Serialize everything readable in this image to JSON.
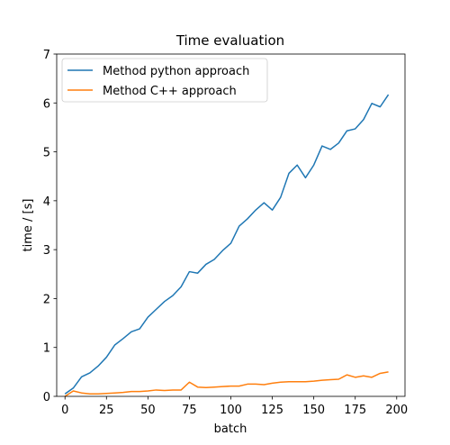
{
  "chart_data": {
    "type": "line",
    "title": "Time evaluation",
    "xlabel": "batch",
    "ylabel": "time / [s]",
    "xlim": [
      -5,
      205
    ],
    "ylim": [
      0,
      7
    ],
    "xticks": [
      0,
      25,
      50,
      75,
      100,
      125,
      150,
      175,
      200
    ],
    "yticks": [
      0,
      1,
      2,
      3,
      4,
      5,
      6,
      7
    ],
    "grid": false,
    "legend_position": "top-left",
    "x": [
      0,
      5,
      10,
      15,
      20,
      25,
      30,
      35,
      40,
      45,
      50,
      55,
      60,
      65,
      70,
      75,
      80,
      85,
      90,
      95,
      100,
      105,
      110,
      115,
      120,
      125,
      130,
      135,
      140,
      145,
      150,
      155,
      160,
      165,
      170,
      175,
      180,
      185,
      190,
      195
    ],
    "series": [
      {
        "name": "Method python approach",
        "color": "#1f77b4",
        "values": [
          0.05,
          0.17,
          0.4,
          0.48,
          0.62,
          0.8,
          1.05,
          1.18,
          1.32,
          1.38,
          1.62,
          1.78,
          1.94,
          2.06,
          2.24,
          2.55,
          2.52,
          2.7,
          2.8,
          2.98,
          3.13,
          3.48,
          3.63,
          3.81,
          3.96,
          3.81,
          4.07,
          4.56,
          4.73,
          4.47,
          4.73,
          5.12,
          5.05,
          5.18,
          5.43,
          5.47,
          5.66,
          5.99,
          5.92,
          6.17
        ]
      },
      {
        "name": "Method C++ approach",
        "color": "#ff7f0e",
        "values": [
          0.0,
          0.11,
          0.07,
          0.05,
          0.05,
          0.06,
          0.07,
          0.08,
          0.1,
          0.1,
          0.11,
          0.13,
          0.12,
          0.13,
          0.13,
          0.29,
          0.19,
          0.18,
          0.19,
          0.2,
          0.21,
          0.21,
          0.25,
          0.25,
          0.24,
          0.27,
          0.29,
          0.3,
          0.3,
          0.3,
          0.31,
          0.33,
          0.34,
          0.35,
          0.44,
          0.39,
          0.42,
          0.39,
          0.47,
          0.5
        ]
      }
    ]
  }
}
